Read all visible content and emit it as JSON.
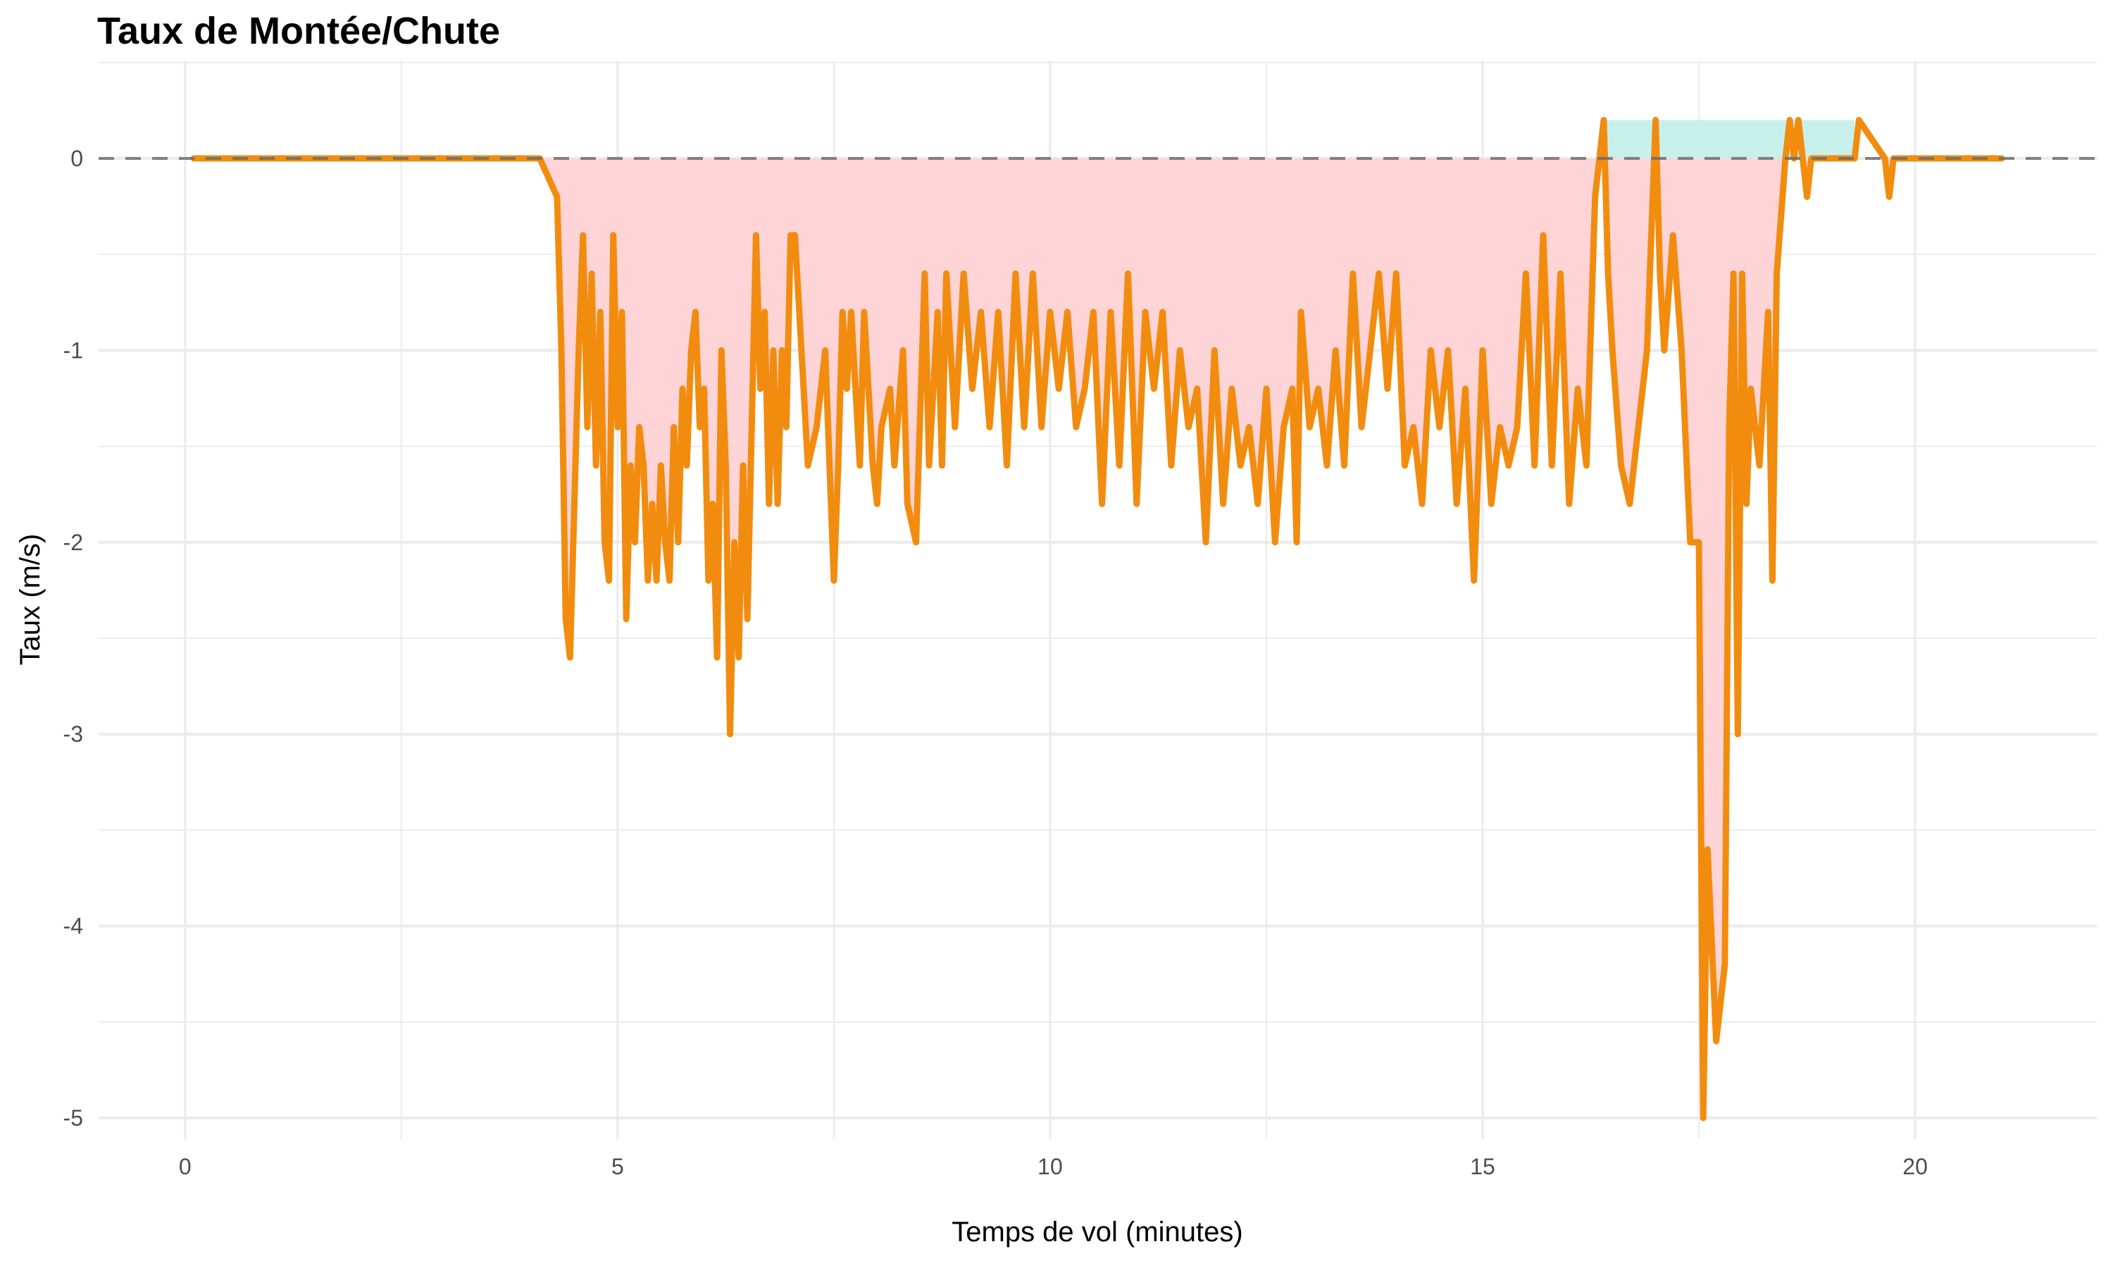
{
  "chart_data": {
    "type": "line",
    "title": "Taux de Montée/Chute",
    "xlabel": "Temps de vol (minutes)",
    "ylabel": "Taux (m/s)",
    "xlim": [
      -1.0,
      22.1
    ],
    "ylim": [
      -5.11,
      0.51
    ],
    "x_ticks": [
      0,
      5,
      10,
      15,
      20
    ],
    "x_tick_labels": [
      "0",
      "5",
      "10",
      "15",
      "20"
    ],
    "y_ticks": [
      0,
      -1,
      -2,
      -3,
      -4,
      -5
    ],
    "y_tick_labels": [
      "0",
      "-1",
      "-2",
      "-3",
      "-4",
      "-5"
    ],
    "grid": true,
    "reference_line": {
      "y": 0,
      "style": "dashed"
    },
    "ascent_band": {
      "x_start": 16.4,
      "x_end": 19.3,
      "y_low": 0,
      "y_high": 0.2
    },
    "colors": {
      "line": "#F28C0F",
      "descent_fill": "#FFD4D6",
      "ascent_fill": "#C8F0EB",
      "ref_line": "#6b6b6b",
      "grid": "#EBEBEB"
    },
    "series": [
      {
        "name": "Taux",
        "x": [
          0.1,
          4.1,
          4.3,
          4.35,
          4.4,
          4.45,
          4.5,
          4.55,
          4.6,
          4.65,
          4.7,
          4.75,
          4.8,
          4.85,
          4.9,
          4.95,
          5.0,
          5.05,
          5.1,
          5.15,
          5.2,
          5.25,
          5.3,
          5.35,
          5.4,
          5.45,
          5.5,
          5.55,
          5.6,
          5.65,
          5.7,
          5.75,
          5.8,
          5.85,
          5.9,
          5.95,
          6.0,
          6.05,
          6.1,
          6.15,
          6.2,
          6.25,
          6.3,
          6.35,
          6.4,
          6.45,
          6.5,
          6.55,
          6.6,
          6.65,
          6.7,
          6.75,
          6.8,
          6.85,
          6.9,
          6.95,
          7.0,
          7.05,
          7.1,
          7.2,
          7.3,
          7.4,
          7.5,
          7.55,
          7.6,
          7.65,
          7.7,
          7.8,
          7.85,
          7.95,
          8.0,
          8.05,
          8.15,
          8.2,
          8.3,
          8.35,
          8.45,
          8.55,
          8.6,
          8.7,
          8.75,
          8.8,
          8.9,
          9.0,
          9.1,
          9.2,
          9.3,
          9.4,
          9.5,
          9.6,
          9.7,
          9.8,
          9.9,
          10.0,
          10.1,
          10.2,
          10.3,
          10.4,
          10.5,
          10.6,
          10.7,
          10.8,
          10.9,
          11.0,
          11.1,
          11.2,
          11.3,
          11.4,
          11.5,
          11.6,
          11.7,
          11.8,
          11.9,
          12.0,
          12.1,
          12.2,
          12.3,
          12.4,
          12.5,
          12.6,
          12.7,
          12.8,
          12.85,
          12.9,
          13.0,
          13.1,
          13.2,
          13.3,
          13.4,
          13.5,
          13.6,
          13.7,
          13.8,
          13.9,
          14.0,
          14.1,
          14.2,
          14.3,
          14.4,
          14.5,
          14.6,
          14.7,
          14.8,
          14.9,
          15.0,
          15.1,
          15.2,
          15.3,
          15.4,
          15.5,
          15.6,
          15.7,
          15.8,
          15.9,
          16.0,
          16.1,
          16.2,
          16.3,
          16.4,
          16.45,
          16.5,
          16.6,
          16.7,
          16.8,
          16.9,
          17.0,
          17.05,
          17.1,
          17.2,
          17.3,
          17.4,
          17.5,
          17.55,
          17.6,
          17.7,
          17.8,
          17.85,
          17.9,
          17.95,
          18.0,
          18.05,
          18.1,
          18.2,
          18.3,
          18.35,
          18.4,
          18.5,
          18.55,
          18.6,
          18.65,
          18.7,
          18.75,
          18.8,
          19.3,
          19.35,
          19.65,
          19.7,
          19.75,
          21.0
        ],
        "y": [
          0,
          0,
          -0.2,
          -1,
          -2.4,
          -2.6,
          -1.8,
          -1,
          -0.4,
          -1.4,
          -0.6,
          -1.6,
          -0.8,
          -2.0,
          -2.2,
          -0.4,
          -1.4,
          -0.8,
          -2.4,
          -1.6,
          -2.0,
          -1.4,
          -1.6,
          -2.2,
          -1.8,
          -2.2,
          -1.6,
          -2.0,
          -2.2,
          -1.4,
          -2.0,
          -1.2,
          -1.6,
          -1.0,
          -0.8,
          -1.4,
          -1.2,
          -2.2,
          -1.8,
          -2.6,
          -1.0,
          -1.6,
          -3.0,
          -2.0,
          -2.6,
          -1.6,
          -2.4,
          -1.4,
          -0.4,
          -1.2,
          -0.8,
          -1.8,
          -1.0,
          -1.8,
          -1.0,
          -1.4,
          -0.4,
          -0.4,
          -0.8,
          -1.6,
          -1.4,
          -1.0,
          -2.2,
          -1.6,
          -0.8,
          -1.2,
          -0.8,
          -1.6,
          -0.8,
          -1.6,
          -1.8,
          -1.4,
          -1.2,
          -1.6,
          -1.0,
          -1.8,
          -2.0,
          -0.6,
          -1.6,
          -0.8,
          -1.6,
          -0.6,
          -1.4,
          -0.6,
          -1.2,
          -0.8,
          -1.4,
          -0.8,
          -1.6,
          -0.6,
          -1.4,
          -0.6,
          -1.4,
          -0.8,
          -1.2,
          -0.8,
          -1.4,
          -1.2,
          -0.8,
          -1.8,
          -0.8,
          -1.6,
          -0.6,
          -1.8,
          -0.8,
          -1.2,
          -0.8,
          -1.6,
          -1.0,
          -1.4,
          -1.2,
          -2.0,
          -1.0,
          -1.8,
          -1.2,
          -1.6,
          -1.4,
          -1.8,
          -1.2,
          -2.0,
          -1.4,
          -1.2,
          -2.0,
          -0.8,
          -1.4,
          -1.2,
          -1.6,
          -1.0,
          -1.6,
          -0.6,
          -1.4,
          -1.0,
          -0.6,
          -1.2,
          -0.6,
          -1.6,
          -1.4,
          -1.8,
          -1.0,
          -1.4,
          -1.0,
          -1.8,
          -1.2,
          -2.2,
          -1.0,
          -1.8,
          -1.4,
          -1.6,
          -1.4,
          -0.6,
          -1.6,
          -0.4,
          -1.6,
          -0.6,
          -1.8,
          -1.2,
          -1.6,
          -0.2,
          0.2,
          -0.6,
          -1.0,
          -1.6,
          -1.8,
          -1.4,
          -1.0,
          0.2,
          -0.6,
          -1.0,
          -0.4,
          -1.0,
          -2.0,
          -2.0,
          -5.0,
          -3.6,
          -4.6,
          -4.2,
          -1.4,
          -0.6,
          -3.0,
          -0.6,
          -1.8,
          -1.2,
          -1.6,
          -0.8,
          -2.2,
          -0.6,
          0,
          0.2,
          0,
          0.2,
          0,
          -0.2,
          0,
          0,
          0.2,
          0,
          -0.2,
          0,
          0
        ]
      }
    ]
  }
}
